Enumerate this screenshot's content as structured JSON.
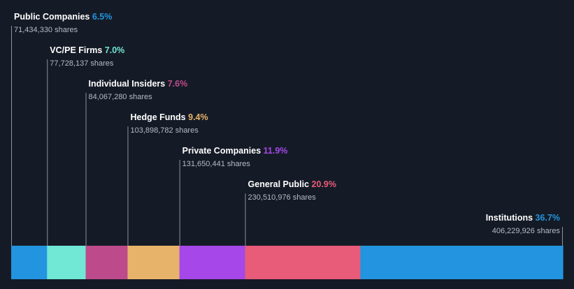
{
  "chart_data": {
    "type": "bar",
    "orientation": "stacked-horizontal",
    "title": "",
    "xlabel": "",
    "ylabel": "",
    "grid": false,
    "series": [
      {
        "name": "Public Companies",
        "percent_label": "6.5%",
        "value": 6.5,
        "shares": "71,434,330 shares",
        "color": "#2394df"
      },
      {
        "name": "VC/PE Firms",
        "percent_label": "7.0%",
        "value": 7.0,
        "shares": "77,728,137 shares",
        "color": "#71e7d6"
      },
      {
        "name": "Individual Insiders",
        "percent_label": "7.6%",
        "value": 7.6,
        "shares": "84,067,280 shares",
        "color": "#bd4b8b"
      },
      {
        "name": "Hedge Funds",
        "percent_label": "9.4%",
        "value": 9.4,
        "shares": "103,898,782 shares",
        "color": "#e7b36a"
      },
      {
        "name": "Private Companies",
        "percent_label": "11.9%",
        "value": 11.9,
        "shares": "131,650,441 shares",
        "color": "#a547e9"
      },
      {
        "name": "General Public",
        "percent_label": "20.9%",
        "value": 20.9,
        "shares": "230,510,976 shares",
        "color": "#e85b79"
      },
      {
        "name": "Institutions",
        "percent_label": "36.7%",
        "value": 36.7,
        "shares": "406,229,926 shares",
        "color": "#2394df"
      }
    ]
  }
}
